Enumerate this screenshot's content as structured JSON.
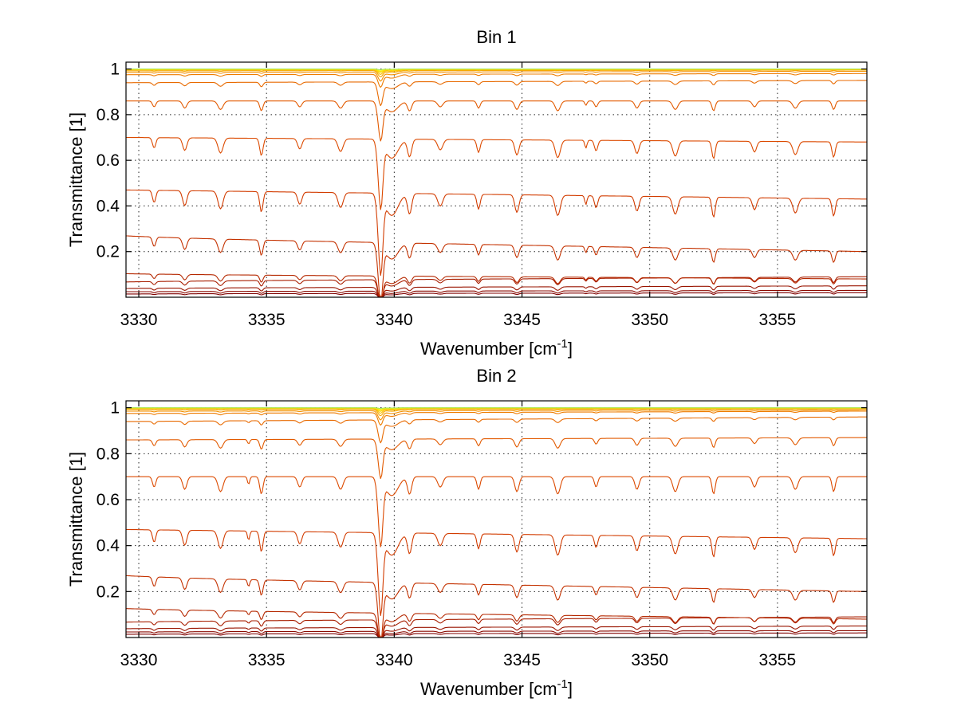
{
  "chart_data": [
    {
      "type": "line",
      "title": "Bin 1",
      "xlabel": "Wavenumber [cm",
      "xlabel_sup": "-1",
      "xlabel_end": "]",
      "ylabel": "Transmittance [1]",
      "xlim": [
        3329.5,
        3358.5
      ],
      "ylim": [
        0.0,
        1.03
      ],
      "xticks": [
        3330,
        3335,
        3340,
        3345,
        3350,
        3355
      ],
      "xtick_labels": [
        "3330",
        "3335",
        "3340",
        "3345",
        "3350",
        "3355"
      ],
      "yticks": [
        0.2,
        0.4,
        0.6,
        0.8,
        1
      ],
      "ytick_labels": [
        "0.2",
        "0.4",
        "0.6",
        "0.8",
        "1"
      ],
      "grid": true,
      "line_minor_center": 3347.5,
      "series": [
        {
          "base_start": 0.015,
          "base_end": 0.02,
          "color": "#800000"
        },
        {
          "base_start": 0.025,
          "base_end": 0.03,
          "color": "#8b0a00"
        },
        {
          "base_start": 0.04,
          "base_end": 0.05,
          "color": "#991400"
        },
        {
          "base_start": 0.07,
          "base_end": 0.09,
          "color": "#a81e00"
        },
        {
          "base_start": 0.1,
          "base_end": 0.08,
          "color": "#b52800"
        },
        {
          "base_start": 0.26,
          "base_end": 0.2,
          "color": "#c43200"
        },
        {
          "base_start": 0.47,
          "base_end": 0.43,
          "color": "#d23c00"
        },
        {
          "base_start": 0.7,
          "base_end": 0.68,
          "color": "#dc4a00"
        },
        {
          "base_start": 0.86,
          "base_end": 0.86,
          "color": "#e25a00"
        },
        {
          "base_start": 0.94,
          "base_end": 0.95,
          "color": "#e86a00"
        },
        {
          "base_start": 0.975,
          "base_end": 0.98,
          "color": "#ee7c00"
        },
        {
          "base_start": 0.985,
          "base_end": 0.99,
          "color": "#f39000"
        },
        {
          "base_start": 0.992,
          "base_end": 0.995,
          "color": "#f6a600"
        },
        {
          "base_start": 0.996,
          "base_end": 0.997,
          "color": "#f9bc00"
        },
        {
          "base_start": 0.998,
          "base_end": 0.999,
          "color": "#fbd200"
        },
        {
          "base_start": 0.999,
          "base_end": 1.0,
          "color": "#fde600"
        },
        {
          "base_start": 1.0,
          "base_end": 1.0,
          "color": "#f0f020"
        },
        {
          "base_start": 1.0,
          "base_end": 1.0,
          "color": "#a8e860"
        }
      ]
    },
    {
      "type": "line",
      "title": "Bin 2",
      "xlabel": "Wavenumber [cm",
      "xlabel_sup": "-1",
      "xlabel_end": "]",
      "ylabel": "Transmittance [1]",
      "xlim": [
        3329.5,
        3358.5
      ],
      "ylim": [
        0.0,
        1.03
      ],
      "xticks": [
        3330,
        3335,
        3340,
        3345,
        3350,
        3355
      ],
      "xtick_labels": [
        "3330",
        "3335",
        "3340",
        "3345",
        "3350",
        "3355"
      ],
      "yticks": [
        0.2,
        0.4,
        0.6,
        0.8,
        1
      ],
      "ytick_labels": [
        "0.2",
        "0.4",
        "0.6",
        "0.8",
        "1"
      ],
      "grid": true,
      "line_minor_center": 3334.3,
      "series": [
        {
          "base_start": 0.015,
          "base_end": 0.02,
          "color": "#800000"
        },
        {
          "base_start": 0.025,
          "base_end": 0.03,
          "color": "#8b0a00"
        },
        {
          "base_start": 0.04,
          "base_end": 0.05,
          "color": "#991400"
        },
        {
          "base_start": 0.07,
          "base_end": 0.09,
          "color": "#a81e00"
        },
        {
          "base_start": 0.12,
          "base_end": 0.08,
          "color": "#b52800"
        },
        {
          "base_start": 0.26,
          "base_end": 0.2,
          "color": "#c43200"
        },
        {
          "base_start": 0.47,
          "base_end": 0.43,
          "color": "#d23c00"
        },
        {
          "base_start": 0.7,
          "base_end": 0.7,
          "color": "#dc4a00"
        },
        {
          "base_start": 0.86,
          "base_end": 0.87,
          "color": "#e25a00"
        },
        {
          "base_start": 0.94,
          "base_end": 0.96,
          "color": "#e86a00"
        },
        {
          "base_start": 0.975,
          "base_end": 0.985,
          "color": "#ee7c00"
        },
        {
          "base_start": 0.985,
          "base_end": 0.99,
          "color": "#f39000"
        },
        {
          "base_start": 0.992,
          "base_end": 0.995,
          "color": "#f6a600"
        },
        {
          "base_start": 0.996,
          "base_end": 0.997,
          "color": "#f9bc00"
        },
        {
          "base_start": 0.998,
          "base_end": 0.999,
          "color": "#fbd200"
        },
        {
          "base_start": 0.999,
          "base_end": 1.0,
          "color": "#fde600"
        },
        {
          "base_start": 1.0,
          "base_end": 1.0,
          "color": "#f0f020"
        },
        {
          "base_start": 1.0,
          "base_end": 1.0,
          "color": "#a8e860"
        }
      ]
    }
  ],
  "absorption_lines": [
    3330.6,
    3331.8,
    3333.2,
    3334.8,
    3336.3,
    3337.9,
    3339.5,
    3340.6,
    3341.8,
    3343.3,
    3344.8,
    3346.4,
    3347.9,
    3349.5,
    3351.0,
    3352.5,
    3354.1,
    3355.7,
    3357.2
  ]
}
